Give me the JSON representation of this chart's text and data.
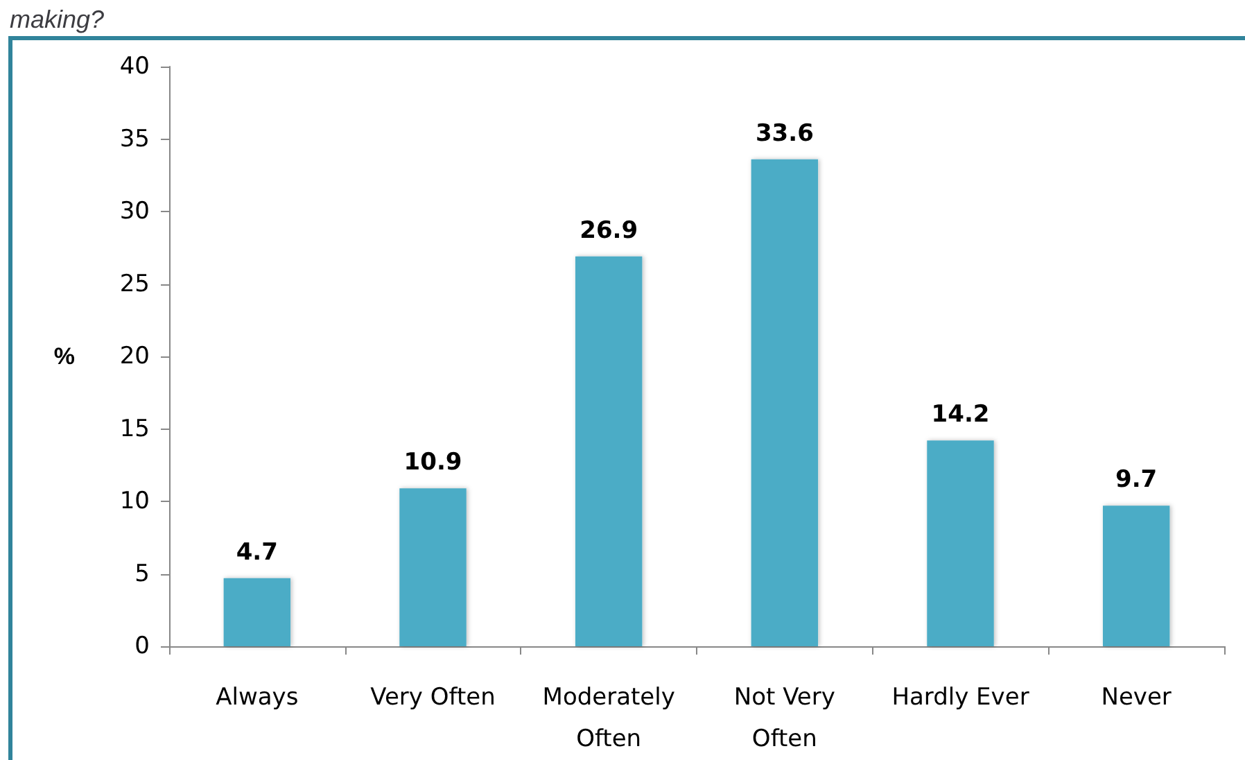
{
  "chart_data": {
    "type": "bar",
    "title": "making?",
    "ylabel": "%",
    "categories": [
      "Always",
      "Very Often",
      "Moderately\nOften",
      "Not Very\nOften",
      "Hardly Ever",
      "Never"
    ],
    "values": [
      4.7,
      10.9,
      26.9,
      33.6,
      14.2,
      9.7
    ],
    "color": "#4bacc6",
    "ylim": [
      0,
      40
    ],
    "yticks": [
      0,
      5,
      10,
      15,
      20,
      25,
      30,
      35,
      40
    ],
    "grid": false,
    "data_labels": true
  }
}
